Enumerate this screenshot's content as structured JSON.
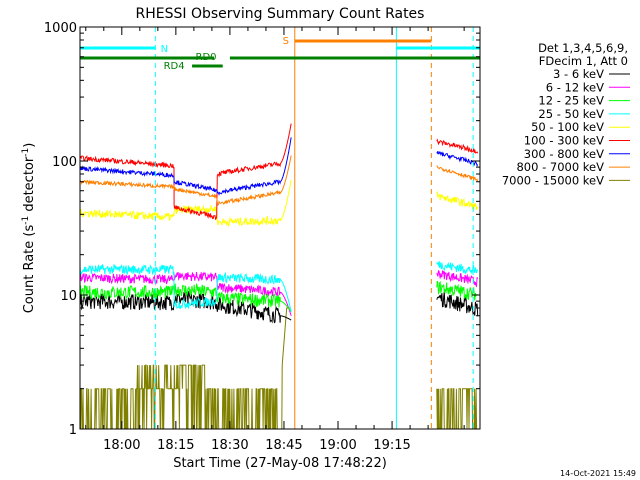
{
  "chart_data": {
    "type": "line",
    "title": "RHESSI Observing Summary Count Rates",
    "xlabel": "Start Time (27-May-08 17:48:22)",
    "ylabel": "Count Rate (s",
    "ylabel_sup1": "-1",
    "ylabel_mid": " detector",
    "ylabel_sup2": "-1",
    "ylabel_end": ")",
    "yscale": "log",
    "ylim": [
      1,
      1000
    ],
    "y_ticks": [
      1,
      10,
      100,
      1000
    ],
    "y_tick_labels": [
      "1",
      "10",
      "100",
      "1000"
    ],
    "xlim_min": [
      -11.6,
      99.4
    ],
    "x_ticks_min": [
      0,
      15,
      30,
      45,
      60,
      75
    ],
    "x_tick_labels": [
      "18:00",
      "18:15",
      "18:30",
      "18:45",
      "19:00",
      "19:15"
    ],
    "legend": {
      "header1": "Det 1,3,4,5,6,9,",
      "header2": "FDecim 1, Att 0",
      "placement": "right"
    },
    "series": [
      {
        "name": "3 - 6 keV",
        "color": "#000000",
        "segments": [
          [
            -11.6,
            9.0,
            8.8,
            0.7
          ],
          [
            14.5,
            9.5,
            8.8,
            0.7
          ],
          [
            26.5,
            8.5,
            7.0,
            0.8
          ]
        ],
        "rise": 6.5,
        "resume": 9.6,
        "resume_end": 7.8,
        "noise": 0.06
      },
      {
        "name": "6 - 12 keV",
        "color": "#ff00ff",
        "segments": [
          [
            -11.6,
            13.5,
            13.0,
            0.6
          ],
          [
            14.5,
            14.0,
            13.5,
            0.6
          ],
          [
            26.5,
            11.5,
            10.5,
            0.7
          ]
        ],
        "rise": 7.0,
        "resume": 14.5,
        "resume_end": 12.5,
        "noise": 0.035
      },
      {
        "name": "12 - 25 keV",
        "color": "#00ff00",
        "segments": [
          [
            -11.6,
            10.5,
            10.5,
            0.7
          ],
          [
            14.5,
            11.0,
            10.5,
            0.7
          ],
          [
            26.5,
            9.5,
            9.0,
            0.8
          ]
        ],
        "rise": 7.5,
        "resume": 11.5,
        "resume_end": 10.0,
        "noise": 0.05
      },
      {
        "name": "25 - 50 keV",
        "color": "#00ffff",
        "segments": [
          [
            -11.6,
            15.5,
            15.5,
            0.6
          ],
          [
            14.5,
            8.5,
            9.0,
            0.6
          ],
          [
            26.5,
            13.5,
            13.0,
            0.7
          ]
        ],
        "rise": 7.5,
        "resume": 17.0,
        "resume_end": 15.0,
        "noise": 0.035
      },
      {
        "name": "50 - 100 keV",
        "color": "#ffff00",
        "segments": [
          [
            -11.6,
            41,
            38,
            0.6
          ],
          [
            14.5,
            43,
            44,
            0.6
          ],
          [
            26.5,
            35,
            36,
            0.7
          ]
        ],
        "rise": 72,
        "resume": 55,
        "resume_end": 45,
        "noise": 0.03
      },
      {
        "name": "100 - 300 keV",
        "color": "#ff0000",
        "segments": [
          [
            -11.6,
            105,
            92,
            0.6
          ],
          [
            14.5,
            45,
            38,
            0.6
          ],
          [
            26.5,
            80,
            96,
            0.7
          ]
        ],
        "rise": 190,
        "resume": 140,
        "resume_end": 118,
        "noise": 0.018
      },
      {
        "name": "300 - 800 keV",
        "color": "#0000ff",
        "segments": [
          [
            -11.6,
            88,
            78,
            0.6
          ],
          [
            14.5,
            70,
            60,
            0.6
          ],
          [
            26.5,
            58,
            70,
            0.7
          ]
        ],
        "rise": 150,
        "resume": 115,
        "resume_end": 95,
        "noise": 0.016
      },
      {
        "name": "800 - 7000 keV",
        "color": "#ff8000",
        "segments": [
          [
            -11.6,
            70,
            64,
            0.6
          ],
          [
            14.5,
            62,
            54,
            0.6
          ],
          [
            26.5,
            48,
            58,
            0.7
          ]
        ],
        "rise": 110,
        "resume": 90,
        "resume_end": 72,
        "noise": 0.014
      },
      {
        "name": "7000 - 15000 keV",
        "color": "#808000",
        "segments": [],
        "noise": 0.0
      }
    ],
    "intervals": {
      "night": {
        "label": "N",
        "color": "#00ffff",
        "bars": [
          [
            -11.6,
            9.3
          ],
          [
            76.2,
            99.4
          ]
        ]
      },
      "saa": {
        "label": "S",
        "color": "#ff8000",
        "bars": [
          [
            48.0,
            85.9
          ]
        ]
      },
      "rd0": {
        "label": "RD0",
        "color": "#008000",
        "bars": [
          [
            -11.6,
            25.6
          ],
          [
            30.0,
            99.4
          ]
        ]
      },
      "rd4": {
        "label": "RD4",
        "color": "#008000",
        "bars": [
          [
            19.5,
            28.0
          ]
        ]
      }
    },
    "vertical_lines": [
      {
        "x": -11.6,
        "color": "#00ffff",
        "dashed": false
      },
      {
        "x": 9.3,
        "color": "#00ffff",
        "dashed": true
      },
      {
        "x": 76.2,
        "color": "#00ffff",
        "dashed": false
      },
      {
        "x": 97.5,
        "color": "#00ffff",
        "dashed": true
      },
      {
        "x": 48.0,
        "color": "#ff8000",
        "dashed": false
      },
      {
        "x": 85.9,
        "color": "#ff8000",
        "dashed": true
      }
    ],
    "gaps": [
      [
        48.0,
        87.4
      ]
    ]
  },
  "footer": {
    "timestamp": "14-Oct-2021 15:49"
  }
}
